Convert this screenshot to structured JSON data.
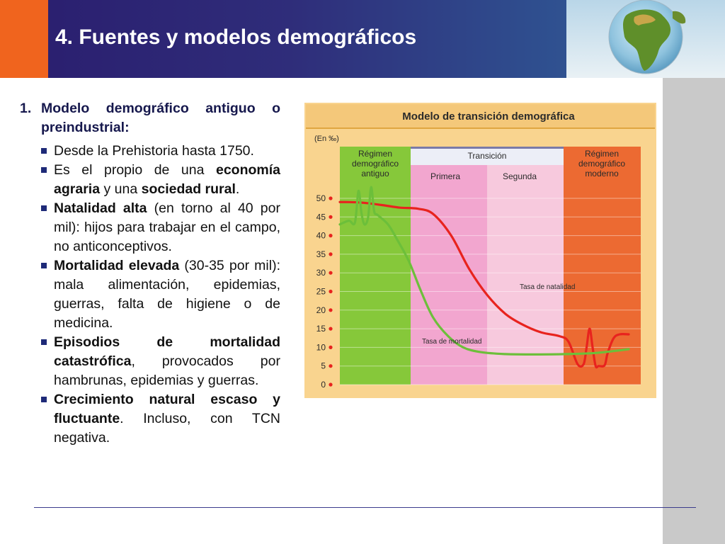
{
  "header": {
    "title": "4. Fuentes y modelos demográficos"
  },
  "colors": {
    "header_bg": "#2b2170",
    "accent_orange": "#f0641e",
    "bullet": "#1e2a78",
    "natalidad": "#e8231e",
    "mortalidad": "#6cbf3a"
  },
  "section": {
    "number": "1.",
    "heading": "Modelo demográfico antiguo o preindustrial:",
    "bullets": [
      {
        "parts": [
          {
            "t": "Desde la Prehistoria hasta 1750.",
            "b": false
          }
        ]
      },
      {
        "parts": [
          {
            "t": "Es el propio de una ",
            "b": false
          },
          {
            "t": "economía agraria",
            "b": true
          },
          {
            "t": " y una ",
            "b": false
          },
          {
            "t": "sociedad rural",
            "b": true
          },
          {
            "t": ".",
            "b": false
          }
        ]
      },
      {
        "parts": [
          {
            "t": "Natalidad alta",
            "b": true
          },
          {
            "t": " (en torno al 40 por mil): hijos para trabajar en el campo, no anticonceptivos.",
            "b": false
          }
        ]
      },
      {
        "parts": [
          {
            "t": "Mortalidad elevada",
            "b": true
          },
          {
            "t": " (30-35 por mil): mala alimentación, epidemias, guerras, falta de higiene o de medicina.",
            "b": false
          }
        ]
      },
      {
        "parts": [
          {
            "t": "Episodios de mortalidad catastrófica",
            "b": true
          },
          {
            "t": ", provocados por hambrunas, epidemias y guerras.",
            "b": false
          }
        ]
      },
      {
        "parts": [
          {
            "t": "Crecimiento natural escaso y fluctuante",
            "b": true
          },
          {
            "t": ". Incluso, con TCN negativa.",
            "b": false
          }
        ]
      }
    ]
  },
  "chart_data": {
    "type": "line",
    "title": "Modelo de transición demográfica",
    "unit_label": "(En ‰)",
    "ylim": [
      0,
      50
    ],
    "y_ticks": [
      "50",
      "45",
      "40",
      "35",
      "30",
      "25",
      "20",
      "15",
      "10",
      "5",
      "0"
    ],
    "phases": [
      {
        "label": "Régimen demográfico antiguo",
        "color": "#86c83a"
      },
      {
        "label": "Primera",
        "color": "#f2a6cf"
      },
      {
        "label": "Segunda",
        "color": "#f7c9dd"
      },
      {
        "label": "Régimen demográfico moderno",
        "color": "#ec6a32"
      }
    ],
    "transition_label": "Transición",
    "series": [
      {
        "name": "Tasa de natalidad",
        "color": "#e8231e",
        "values": [
          [
            0,
            49
          ],
          [
            3,
            49
          ],
          [
            8,
            48.8
          ],
          [
            14,
            48.2
          ],
          [
            20,
            47.5
          ],
          [
            26,
            47.2
          ],
          [
            31,
            45.8
          ],
          [
            37,
            40
          ],
          [
            43,
            31
          ],
          [
            49,
            24
          ],
          [
            55,
            19
          ],
          [
            61,
            16
          ],
          [
            67,
            14
          ],
          [
            73,
            13
          ],
          [
            76,
            11.5
          ],
          [
            79,
            5.5
          ],
          [
            81,
            5.5
          ],
          [
            82,
            10
          ],
          [
            83,
            15
          ],
          [
            84,
            10
          ],
          [
            85,
            5
          ],
          [
            86,
            5
          ],
          [
            88,
            5.2
          ],
          [
            89,
            8.5
          ],
          [
            91,
            12.5
          ],
          [
            93,
            13.5
          ],
          [
            96,
            13.5
          ]
        ]
      },
      {
        "name": "Tasa de mortalidad",
        "color": "#6cbf3a",
        "values": [
          [
            0,
            43
          ],
          [
            3,
            44
          ],
          [
            5,
            43.5
          ],
          [
            6.2,
            52
          ],
          [
            7.2,
            46
          ],
          [
            8.2,
            43
          ],
          [
            9.4,
            45
          ],
          [
            10.4,
            53
          ],
          [
            11.4,
            46.5
          ],
          [
            12.6,
            45.5
          ],
          [
            16,
            43
          ],
          [
            19,
            39
          ],
          [
            23,
            33
          ],
          [
            27,
            25
          ],
          [
            31,
            18
          ],
          [
            36,
            13
          ],
          [
            41,
            10
          ],
          [
            47,
            8.7
          ],
          [
            55,
            8.2
          ],
          [
            65,
            8.1
          ],
          [
            75,
            8.2
          ],
          [
            85,
            8.5
          ],
          [
            96,
            9.5
          ]
        ]
      }
    ]
  }
}
